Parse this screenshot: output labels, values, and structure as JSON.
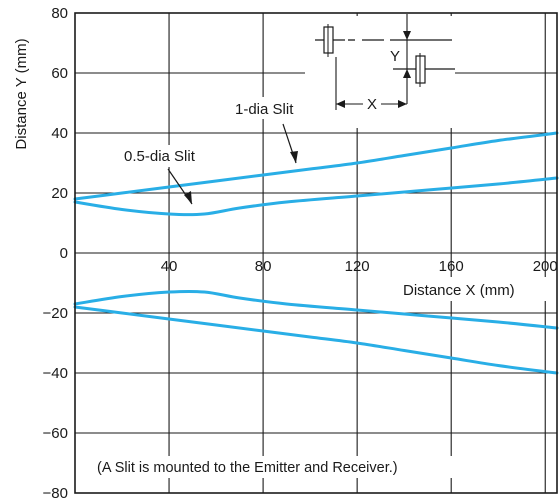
{
  "chart_data": {
    "type": "line",
    "xlabel": "Distance X (mm)",
    "ylabel": "Distance Y (mm)",
    "xlim": [
      0,
      205
    ],
    "ylim": [
      -80,
      80
    ],
    "x_ticks": [
      40,
      80,
      120,
      160,
      200
    ],
    "y_ticks": [
      80,
      60,
      40,
      20,
      0,
      -20,
      -40,
      -60,
      -80
    ],
    "grid": true,
    "line_color": "#29aee6",
    "series": [
      {
        "name": "1-dia Slit",
        "x": [
          0,
          20,
          40,
          60,
          80,
          100,
          120,
          140,
          160,
          180,
          205
        ],
        "y_upper": [
          18,
          20,
          22,
          24,
          26,
          28,
          30,
          32.5,
          35,
          37.5,
          40
        ],
        "y_lower": [
          -18,
          -20,
          -22,
          -24,
          -26,
          -28,
          -30,
          -32.5,
          -35,
          -37.5,
          -40
        ]
      },
      {
        "name": "0.5-dia Slit",
        "x": [
          0,
          20,
          40,
          55,
          70,
          90,
          120,
          150,
          180,
          205
        ],
        "y_upper": [
          17,
          14.5,
          13,
          13,
          15,
          17,
          19,
          21,
          23,
          25
        ],
        "y_lower": [
          -17,
          -14.5,
          -13,
          -13,
          -15,
          -17,
          -19,
          -21,
          -23,
          -25
        ]
      }
    ],
    "annotations": {
      "note": "(A Slit is mounted to the Emitter and Receiver.)",
      "inset_x_label": "X",
      "inset_y_label": "Y"
    }
  }
}
